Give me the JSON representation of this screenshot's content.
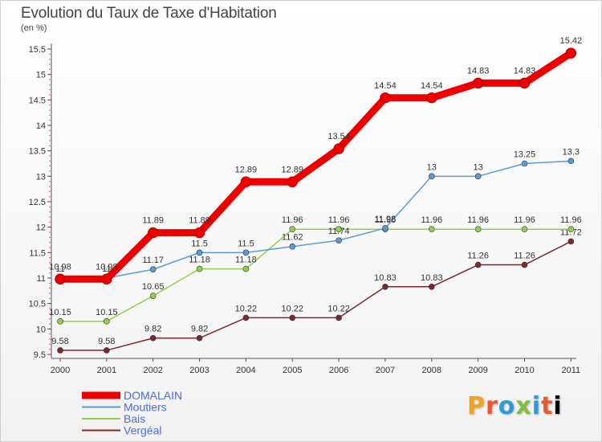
{
  "header": {
    "title": "Evolution du Taux de Taxe d'Habitation",
    "subtitle": "(en %)"
  },
  "logo": {
    "letters": [
      "P",
      "r",
      "o",
      "x",
      "i",
      "t",
      "i"
    ],
    "text": "Proxiti"
  },
  "chart_data": {
    "type": "line",
    "title": "Evolution du Taux de Taxe d'Habitation",
    "subtitle": "(en %)",
    "xlabel": "",
    "ylabel": "",
    "x": [
      "2000",
      "2001",
      "2002",
      "2003",
      "2004",
      "2005",
      "2006",
      "2007",
      "2008",
      "2009",
      "2010",
      "2011"
    ],
    "ylim": [
      9.5,
      15.5
    ],
    "yticks": [
      "9.5",
      "10",
      "10.5",
      "11",
      "11.5",
      "12",
      "12.5",
      "13",
      "13.5",
      "14",
      "14.5",
      "15",
      "15.5"
    ],
    "grid": false,
    "legend_position": "bottom-left",
    "series": [
      {
        "name": "DOMALAIN",
        "color": "#ee0000",
        "values": [
          10.98,
          10.98,
          11.89,
          11.89,
          12.89,
          12.89,
          13.54,
          14.54,
          14.54,
          14.83,
          14.83,
          15.42
        ],
        "labels": [
          "10.98",
          "10.98",
          "11.89",
          "11.89",
          "12.89",
          "12.89",
          "13.54",
          "14.54",
          "14.54",
          "14.83",
          "14.83",
          "15.42"
        ]
      },
      {
        "name": "Moutiers",
        "color": "#5b9bd5",
        "values": [
          11,
          11,
          11.17,
          11.5,
          11.5,
          11.62,
          11.74,
          11.98,
          13,
          13,
          13.25,
          13.3
        ],
        "labels": [
          "11",
          "11",
          "11.17",
          "11.5",
          "11.5",
          "11.62",
          "11.74",
          "11.98",
          "13",
          "13",
          "13.25",
          "13.3"
        ]
      },
      {
        "name": "Bais",
        "color": "#8fd14f",
        "values": [
          10.15,
          10.15,
          10.65,
          11.18,
          11.18,
          11.96,
          11.96,
          11.96,
          11.96,
          11.96,
          11.96,
          11.96
        ],
        "labels": [
          "10.15",
          "10.15",
          "10.65",
          "11.18",
          "11.18",
          "11.96",
          "11.96",
          "11.96",
          "11.96",
          "11.96",
          "11.96",
          "11.96"
        ]
      },
      {
        "name": "Vergéal",
        "color": "#7a2a2a",
        "values": [
          9.58,
          9.58,
          9.82,
          9.82,
          10.22,
          10.22,
          10.22,
          10.83,
          10.83,
          11.26,
          11.26,
          11.72
        ],
        "labels": [
          "9.58",
          "9.58",
          "9.82",
          "9.82",
          "10.22",
          "10.22",
          "10.22",
          "10.83",
          "10.83",
          "11.26",
          "11.26",
          "11.72"
        ]
      }
    ]
  }
}
